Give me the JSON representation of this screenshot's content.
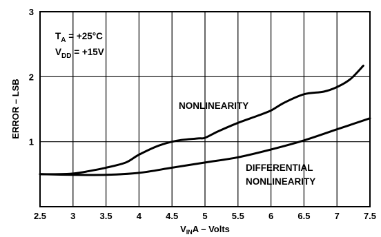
{
  "chart_data": {
    "type": "line",
    "xlabel_main": "V",
    "xlabel_sub": "IN",
    "xlabel_rest": "A – Volts",
    "ylabel": "ERROR – LSB",
    "xlim": [
      2.5,
      7.5
    ],
    "ylim": [
      0,
      3
    ],
    "x_ticks": [
      "2.5",
      "3",
      "3.5",
      "4",
      "4.5",
      "5",
      "5.5",
      "6",
      "6.5",
      "7",
      "7.5"
    ],
    "y_ticks": [
      "1",
      "2",
      "3"
    ],
    "grid": true,
    "conditions": {
      "ta_main": "T",
      "ta_sub": "A",
      "ta_rest": " = +25°C",
      "vdd_main": "V",
      "vdd_sub": "DD",
      "vdd_rest": " = +15V"
    },
    "series": [
      {
        "name": "NONLINEARITY",
        "x": [
          2.5,
          2.8,
          3.0,
          3.2,
          3.5,
          3.8,
          4.0,
          4.3,
          4.6,
          4.9,
          5.0,
          5.2,
          5.5,
          5.8,
          6.0,
          6.2,
          6.5,
          6.8,
          7.0,
          7.2,
          7.4
        ],
        "y": [
          0.5,
          0.5,
          0.51,
          0.54,
          0.6,
          0.68,
          0.8,
          0.94,
          1.02,
          1.05,
          1.06,
          1.16,
          1.29,
          1.4,
          1.48,
          1.6,
          1.73,
          1.77,
          1.84,
          1.96,
          2.17
        ]
      },
      {
        "name": "DIFFERENTIAL NONLINEARITY",
        "x": [
          2.5,
          3.0,
          3.5,
          4.0,
          4.5,
          5.0,
          5.5,
          6.0,
          6.5,
          7.0,
          7.5
        ],
        "y": [
          0.5,
          0.49,
          0.49,
          0.52,
          0.6,
          0.68,
          0.76,
          0.88,
          1.02,
          1.19,
          1.36
        ]
      }
    ]
  }
}
